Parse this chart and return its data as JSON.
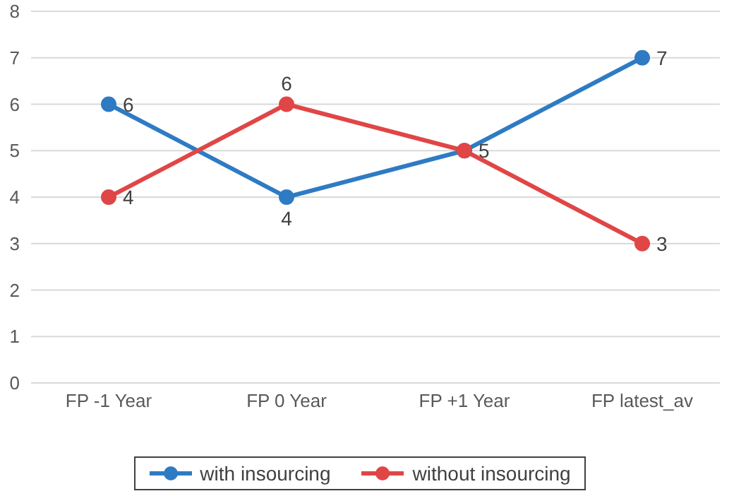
{
  "chart_data": {
    "type": "line",
    "categories": [
      "FP -1 Year",
      "FP 0 Year",
      "FP +1 Year",
      "FP latest_av"
    ],
    "series": [
      {
        "name": "with insourcing",
        "color": "#2e7bc4",
        "values": [
          6,
          4,
          5,
          7
        ],
        "value_labels": [
          "6",
          "4",
          "5",
          "7"
        ]
      },
      {
        "name": "without insourcing",
        "color": "#e04646",
        "values": [
          4,
          6,
          5,
          3
        ],
        "value_labels": [
          "4",
          "6",
          null,
          "3"
        ]
      }
    ],
    "ylim": [
      0,
      8
    ],
    "yticks": [
      0,
      1,
      2,
      3,
      4,
      5,
      6,
      7,
      8
    ],
    "grid": "y",
    "legend": "bottom",
    "marker": "circle",
    "line_style": "solid"
  }
}
